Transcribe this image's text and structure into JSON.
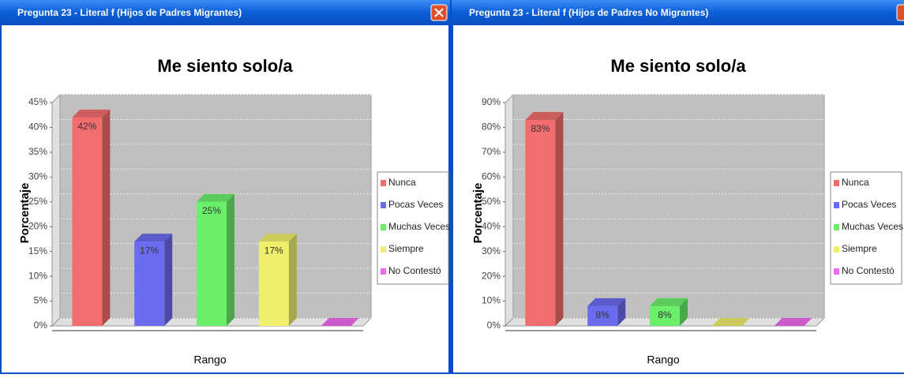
{
  "windows": [
    {
      "title": "Pregunta 23 - Literal f (Hijos de Padres Migrantes)"
    },
    {
      "title": "Pregunta 23 - Literal f (Hijos de Padres No Migrantes)"
    }
  ],
  "chart_data": [
    {
      "type": "bar3d",
      "title": "Me siento solo/a",
      "x_label": "Rango",
      "y_label": "Porcentaje",
      "categories": [
        "Nunca",
        "Pocas Veces",
        "Muchas Veces",
        "Siempre",
        "No Contestó"
      ],
      "colors": [
        "#f26d6d",
        "#6b6bef",
        "#6bef6b",
        "#efef6b",
        "#ef6bef"
      ],
      "values": [
        42,
        17,
        25,
        17,
        0
      ],
      "value_labels": [
        "42%",
        "17%",
        "25%",
        "17%",
        null
      ],
      "ylim": [
        0,
        45
      ],
      "yticks": [
        {
          "value": 0,
          "label": "0%"
        },
        {
          "value": 5,
          "label": "5%"
        },
        {
          "value": 10,
          "label": "10%"
        },
        {
          "value": 15,
          "label": "15%"
        },
        {
          "value": 20,
          "label": "20%"
        },
        {
          "value": 25,
          "label": "25%"
        },
        {
          "value": 30,
          "label": "30%"
        },
        {
          "value": 35,
          "label": "35%"
        },
        {
          "value": 40,
          "label": "40%"
        },
        {
          "value": 45,
          "label": "45%"
        }
      ],
      "grid": true
    },
    {
      "type": "bar3d",
      "title": "Me siento solo/a",
      "x_label": "Rango",
      "y_label": "Porcentaje",
      "categories": [
        "Nunca",
        "Pocas Veces",
        "Muchas Veces",
        "Siempre",
        "No Contestó"
      ],
      "colors": [
        "#f26d6d",
        "#6b6bef",
        "#6bef6b",
        "#efef6b",
        "#ef6bef"
      ],
      "values": [
        83,
        8,
        8,
        0,
        0
      ],
      "value_labels": [
        "83%",
        "8%",
        "8%",
        null,
        null
      ],
      "ylim": [
        0,
        90
      ],
      "yticks": [
        {
          "value": 0,
          "label": "0%"
        },
        {
          "value": 10,
          "label": "10%"
        },
        {
          "value": 20,
          "label": "20%"
        },
        {
          "value": 30,
          "label": "30%"
        },
        {
          "value": 40,
          "label": "40%"
        },
        {
          "value": 50,
          "label": "50%"
        },
        {
          "value": 60,
          "label": "60%"
        },
        {
          "value": 70,
          "label": "70%"
        },
        {
          "value": 80,
          "label": "80%"
        },
        {
          "value": 90,
          "label": "90%"
        }
      ],
      "grid": true
    }
  ]
}
